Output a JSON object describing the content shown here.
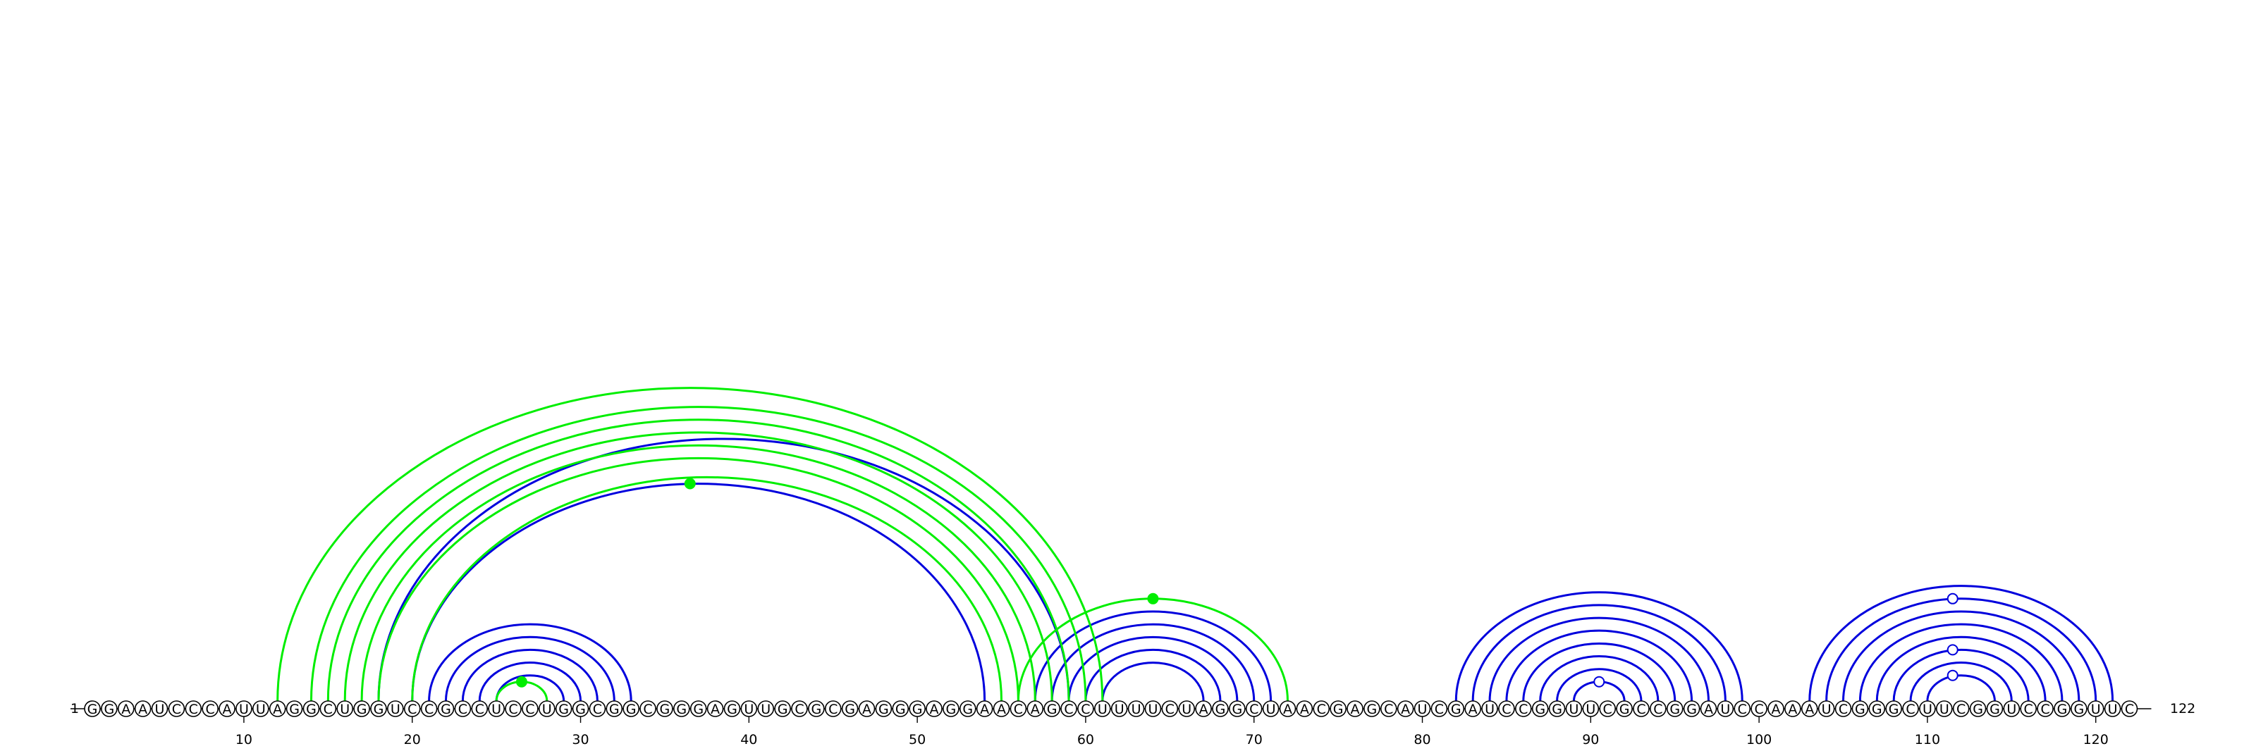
{
  "sequence": "GGAAUCCCAUUAGGCUGGUCCGCCUCCUGGCGGCGGGAGUUGCGCGAGGGAGGAACAGCCUUUUCUAGGCUAACGAGCAUCGAUCCGGUUCGCCGGAUCCAAAUCGGGCUUCGGUCCGGUUC",
  "start_label": "1",
  "end_label": "122",
  "ticks": [
    10,
    20,
    30,
    40,
    50,
    60,
    70,
    80,
    90,
    100,
    110,
    120
  ],
  "colors": {
    "green": "#00ee00",
    "blue": "#0000dd"
  },
  "pairs": {
    "green": [
      [
        12,
        61
      ],
      [
        14,
        60
      ],
      [
        15,
        59
      ],
      [
        16,
        58
      ],
      [
        17,
        57
      ],
      [
        18,
        56
      ],
      [
        20,
        55
      ],
      [
        25,
        28
      ],
      [
        56,
        72
      ]
    ],
    "blue": [
      [
        18,
        59
      ],
      [
        20,
        54
      ],
      [
        21,
        33
      ],
      [
        22,
        32
      ],
      [
        23,
        31
      ],
      [
        24,
        30
      ],
      [
        25,
        29
      ],
      [
        57,
        71
      ],
      [
        58,
        70
      ],
      [
        59,
        69
      ],
      [
        60,
        68
      ],
      [
        61,
        67
      ],
      [
        82,
        99
      ],
      [
        83,
        98
      ],
      [
        84,
        97
      ],
      [
        85,
        96
      ],
      [
        86,
        95
      ],
      [
        87,
        94
      ],
      [
        88,
        93
      ],
      [
        89,
        92
      ],
      [
        103,
        121
      ],
      [
        104,
        120
      ],
      [
        105,
        119
      ],
      [
        106,
        118
      ],
      [
        107,
        117
      ],
      [
        108,
        116
      ],
      [
        109,
        115
      ],
      [
        110,
        114
      ]
    ]
  },
  "markers": [
    {
      "pos": 26.5,
      "level": "arc",
      "arc": [
        25,
        28
      ],
      "fill": "green"
    },
    {
      "pos": 36.5,
      "level": "arc",
      "arc": [
        20,
        54
      ],
      "fill": "green"
    },
    {
      "pos": 64,
      "level": "arc",
      "arc": [
        56,
        72
      ],
      "fill": "green"
    },
    {
      "pos": 90.5,
      "level": "arc",
      "arc": [
        89,
        92
      ],
      "fill": "open"
    },
    {
      "pos": 111.5,
      "level": "arc",
      "arc": [
        110,
        114
      ],
      "fill": "open"
    },
    {
      "pos": 111.5,
      "level": "arc",
      "arc": [
        108,
        116
      ],
      "fill": "open"
    },
    {
      "pos": 111.5,
      "level": "arc",
      "arc": [
        104,
        120
      ],
      "fill": "open"
    }
  ]
}
